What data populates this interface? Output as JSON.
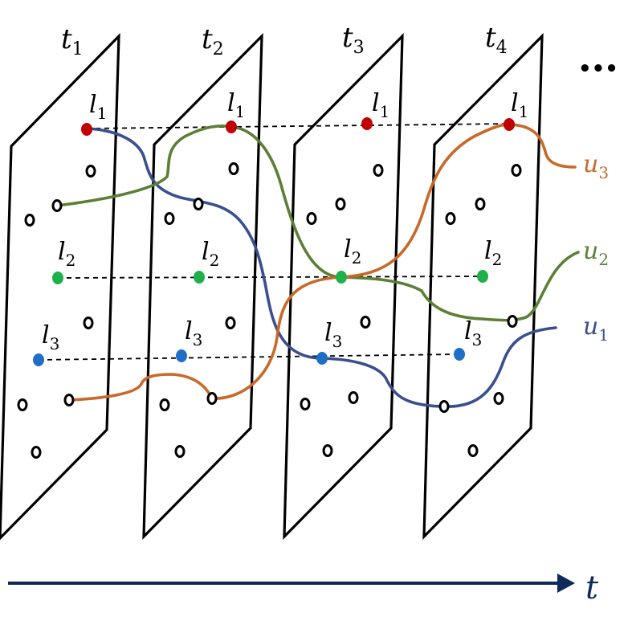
{
  "frames": [
    {
      "label": "t",
      "sub": "1"
    },
    {
      "label": "t",
      "sub": "2"
    },
    {
      "label": "t",
      "sub": "3"
    },
    {
      "label": "t",
      "sub": "4"
    }
  ],
  "ellipsis": "•••",
  "landmarks": [
    {
      "label": "l",
      "sub": "1",
      "color": "#c00000"
    },
    {
      "label": "l",
      "sub": "2",
      "color": "#1db04b"
    },
    {
      "label": "l",
      "sub": "3",
      "color": "#1f6fc5"
    }
  ],
  "trajectories": [
    {
      "label": "u",
      "sub": "1",
      "color": "#3a4f8f"
    },
    {
      "label": "u",
      "sub": "2",
      "color": "#5b7f35"
    },
    {
      "label": "u",
      "sub": "3",
      "color": "#c8692a"
    }
  ],
  "time_axis": {
    "label": "t",
    "color": "#0e2a5c"
  }
}
